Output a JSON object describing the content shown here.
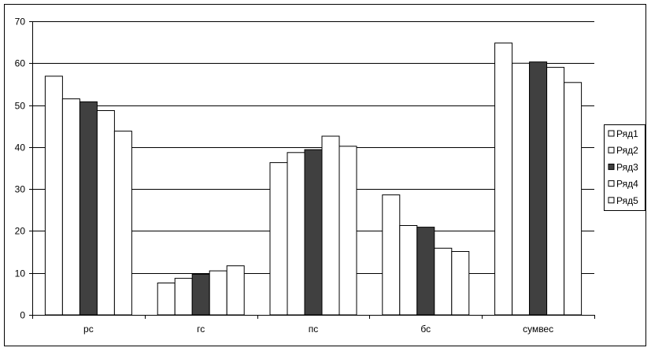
{
  "chart_data": {
    "type": "bar",
    "title": "",
    "xlabel": "",
    "ylabel": "",
    "categories": [
      "рс",
      "гс",
      "пс",
      "бс",
      "сумвес"
    ],
    "ylim": [
      0,
      70
    ],
    "yticks": [
      0,
      10,
      20,
      30,
      40,
      50,
      60,
      70
    ],
    "grid": true,
    "legend_position": "right",
    "series": [
      {
        "name": "Ряд1",
        "color": "#ffffff",
        "values": [
          56.9,
          7.6,
          36.3,
          28.6,
          64.8
        ]
      },
      {
        "name": "Ряд2",
        "color": "#ffffff",
        "values": [
          51.5,
          8.7,
          38.7,
          21.3,
          60.0
        ]
      },
      {
        "name": "Ряд3",
        "color": "#404040",
        "values": [
          50.8,
          9.7,
          39.4,
          20.9,
          60.3
        ]
      },
      {
        "name": "Ряд4",
        "color": "#ffffff",
        "values": [
          48.7,
          10.5,
          42.6,
          15.9,
          59.0
        ]
      },
      {
        "name": "Ряд5",
        "color": "#ffffff",
        "values": [
          43.8,
          11.7,
          40.2,
          15.1,
          55.4
        ]
      }
    ]
  }
}
